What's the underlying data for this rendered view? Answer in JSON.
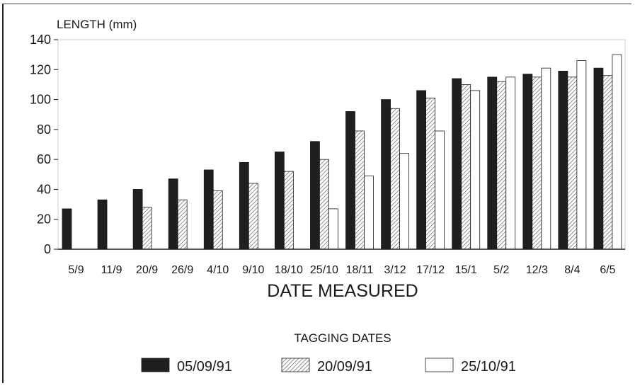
{
  "chart_data": {
    "type": "bar",
    "ylabel": "LENGTH (mm)",
    "xlabel": "DATE MEASURED",
    "ylim": [
      0,
      140
    ],
    "yticks": [
      "0",
      "20",
      "40",
      "60",
      "80",
      "100",
      "120",
      "140"
    ],
    "categories": [
      "5/9",
      "11/9",
      "20/9",
      "26/9",
      "4/10",
      "9/10",
      "18/10",
      "25/10",
      "18/11",
      "3/12",
      "17/12",
      "15/1",
      "5/2",
      "12/3",
      "8/4",
      "6/5"
    ],
    "legend_title": "TAGGING DATES",
    "legend_position": "bottom",
    "grid": false,
    "series": [
      {
        "name": "05/09/91",
        "fill": "#1f1f1f",
        "values": [
          27,
          33,
          40,
          47,
          53,
          58,
          65,
          72,
          92,
          100,
          106,
          114,
          115,
          117,
          119,
          121
        ]
      },
      {
        "name": "20/09/91",
        "fill": "hatched",
        "values": [
          null,
          null,
          28,
          33,
          39,
          44,
          52,
          60,
          79,
          94,
          101,
          110,
          112,
          115,
          115,
          116
        ]
      },
      {
        "name": "25/10/91",
        "fill": "#ffffff",
        "values": [
          null,
          null,
          null,
          null,
          null,
          null,
          null,
          27,
          49,
          64,
          79,
          106,
          115,
          121,
          126,
          130
        ]
      }
    ]
  }
}
